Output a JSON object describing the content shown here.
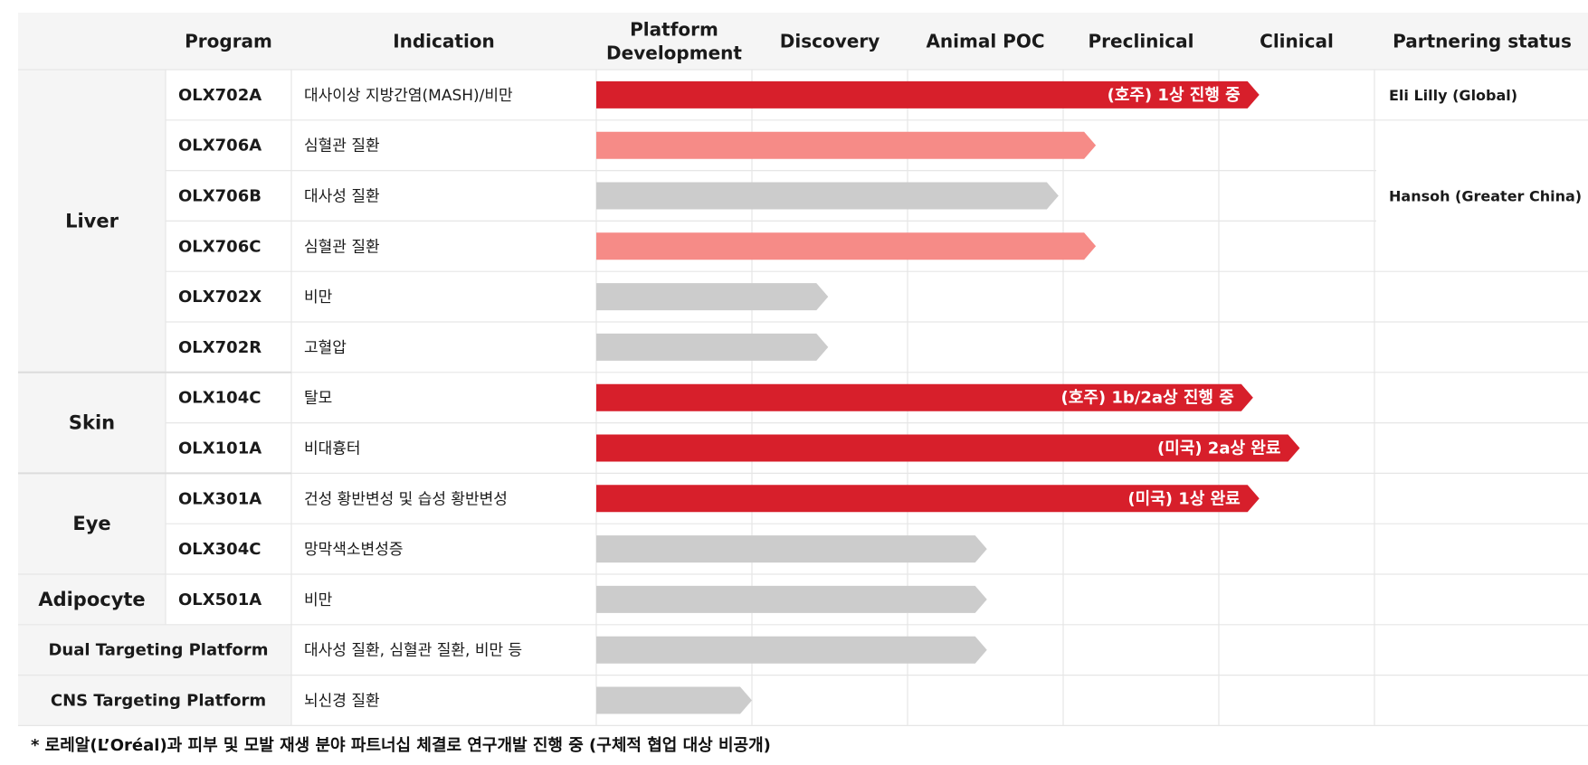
{
  "chart_data": {
    "type": "table",
    "headers": {
      "program": "Program",
      "indication": "Indication",
      "stages": [
        "Platform\nDevelopment",
        "Discovery",
        "Animal POC",
        "Preclinical",
        "Clinical"
      ],
      "partnering": "Partnering status"
    },
    "groups": [
      {
        "name": "Liver",
        "row_count": 6
      },
      {
        "name": "Skin",
        "row_count": 2
      },
      {
        "name": "Eye",
        "row_count": 2
      },
      {
        "name": "Adipocyte",
        "row_count": 1
      }
    ],
    "rows": [
      {
        "program": "OLX702A",
        "indication": "대사이상 지방간염(MASH)/비만",
        "progress": 4.26,
        "style": "red",
        "label": "(호주) 1상 진행 중"
      },
      {
        "program": "OLX706A",
        "indication": "심혈관 질환",
        "progress": 3.21,
        "style": "pink",
        "label": ""
      },
      {
        "program": "OLX706B",
        "indication": "대사성 질환",
        "progress": 2.97,
        "style": "gray",
        "label": ""
      },
      {
        "program": "OLX706C",
        "indication": "심혈관 질환",
        "progress": 3.21,
        "style": "pink",
        "label": ""
      },
      {
        "program": "OLX702X",
        "indication": "비만",
        "progress": 1.49,
        "style": "gray",
        "label": ""
      },
      {
        "program": "OLX702R",
        "indication": "고혈압",
        "progress": 1.49,
        "style": "gray",
        "label": ""
      },
      {
        "program": "OLX104C",
        "indication": "탈모",
        "progress": 4.22,
        "style": "red",
        "label": "(호주) 1b/2a상 진행 중"
      },
      {
        "program": "OLX101A",
        "indication": "비대흉터",
        "progress": 4.52,
        "style": "red",
        "label": "(미국) 2a상 완료"
      },
      {
        "program": "OLX301A",
        "indication": "건성 황반변성 및 습성 황반변성",
        "progress": 4.26,
        "style": "red",
        "label": "(미국) 1상 완료"
      },
      {
        "program": "OLX304C",
        "indication": "망막색소변성증",
        "progress": 2.51,
        "style": "gray",
        "label": ""
      },
      {
        "program": "OLX501A",
        "indication": "비만",
        "progress": 2.51,
        "style": "gray",
        "label": ""
      },
      {
        "program": "Dual Targeting Platform",
        "indication": "대사성 질환, 심혈관 질환, 비만 등",
        "progress": 2.51,
        "style": "gray",
        "label": "",
        "platform": true
      },
      {
        "program": "CNS Targeting Platform",
        "indication": "뇌신경 질환",
        "progress": 1.0,
        "style": "gray",
        "label": "",
        "platform": true
      }
    ],
    "partners": [
      {
        "name": "Eli Lilly (Global)",
        "first_row": 0,
        "row_count": 1
      },
      {
        "name": "Hansoh (Greater China)",
        "first_row": 1,
        "row_count": 3
      }
    ],
    "footnote": "* 로레알(L’Oréal)과 피부 및 모발 재생 분야 파트너십 체결로 연구개발 진행 중 (구체적 협업 대상 비공개)",
    "colors": {
      "red": "#d71f2b",
      "pink": "#f68b87",
      "gray": "#cccccc",
      "header_bg": "#f5f5f5",
      "group_bg": "#f5f5f5",
      "grid": "#e6e6e6"
    }
  }
}
